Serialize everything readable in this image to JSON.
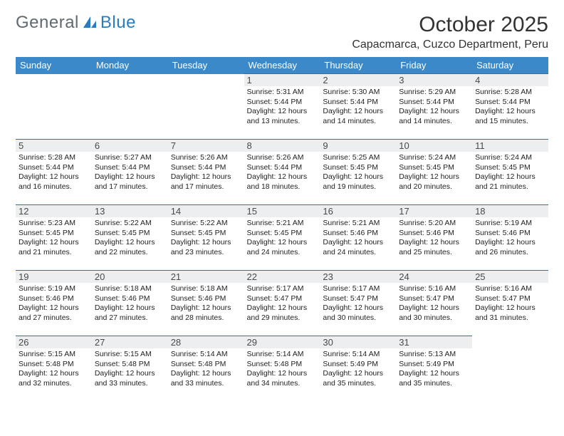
{
  "brand": {
    "part1": "General",
    "part2": "Blue"
  },
  "title": "October 2025",
  "location": "Capacmarca, Cuzco Department, Peru",
  "colors": {
    "header_bg": "#3b89c9",
    "header_text": "#ffffff",
    "row_border": "#2f6fa8",
    "daynum_bg": "#eceeef",
    "logo_gray": "#5f6a72",
    "logo_blue": "#2a7bbf"
  },
  "day_headers": [
    "Sunday",
    "Monday",
    "Tuesday",
    "Wednesday",
    "Thursday",
    "Friday",
    "Saturday"
  ],
  "weeks": [
    [
      null,
      null,
      null,
      {
        "n": "1",
        "sr": "Sunrise: 5:31 AM",
        "ss": "Sunset: 5:44 PM",
        "d1": "Daylight: 12 hours",
        "d2": "and 13 minutes."
      },
      {
        "n": "2",
        "sr": "Sunrise: 5:30 AM",
        "ss": "Sunset: 5:44 PM",
        "d1": "Daylight: 12 hours",
        "d2": "and 14 minutes."
      },
      {
        "n": "3",
        "sr": "Sunrise: 5:29 AM",
        "ss": "Sunset: 5:44 PM",
        "d1": "Daylight: 12 hours",
        "d2": "and 14 minutes."
      },
      {
        "n": "4",
        "sr": "Sunrise: 5:28 AM",
        "ss": "Sunset: 5:44 PM",
        "d1": "Daylight: 12 hours",
        "d2": "and 15 minutes."
      }
    ],
    [
      {
        "n": "5",
        "sr": "Sunrise: 5:28 AM",
        "ss": "Sunset: 5:44 PM",
        "d1": "Daylight: 12 hours",
        "d2": "and 16 minutes."
      },
      {
        "n": "6",
        "sr": "Sunrise: 5:27 AM",
        "ss": "Sunset: 5:44 PM",
        "d1": "Daylight: 12 hours",
        "d2": "and 17 minutes."
      },
      {
        "n": "7",
        "sr": "Sunrise: 5:26 AM",
        "ss": "Sunset: 5:44 PM",
        "d1": "Daylight: 12 hours",
        "d2": "and 17 minutes."
      },
      {
        "n": "8",
        "sr": "Sunrise: 5:26 AM",
        "ss": "Sunset: 5:44 PM",
        "d1": "Daylight: 12 hours",
        "d2": "and 18 minutes."
      },
      {
        "n": "9",
        "sr": "Sunrise: 5:25 AM",
        "ss": "Sunset: 5:45 PM",
        "d1": "Daylight: 12 hours",
        "d2": "and 19 minutes."
      },
      {
        "n": "10",
        "sr": "Sunrise: 5:24 AM",
        "ss": "Sunset: 5:45 PM",
        "d1": "Daylight: 12 hours",
        "d2": "and 20 minutes."
      },
      {
        "n": "11",
        "sr": "Sunrise: 5:24 AM",
        "ss": "Sunset: 5:45 PM",
        "d1": "Daylight: 12 hours",
        "d2": "and 21 minutes."
      }
    ],
    [
      {
        "n": "12",
        "sr": "Sunrise: 5:23 AM",
        "ss": "Sunset: 5:45 PM",
        "d1": "Daylight: 12 hours",
        "d2": "and 21 minutes."
      },
      {
        "n": "13",
        "sr": "Sunrise: 5:22 AM",
        "ss": "Sunset: 5:45 PM",
        "d1": "Daylight: 12 hours",
        "d2": "and 22 minutes."
      },
      {
        "n": "14",
        "sr": "Sunrise: 5:22 AM",
        "ss": "Sunset: 5:45 PM",
        "d1": "Daylight: 12 hours",
        "d2": "and 23 minutes."
      },
      {
        "n": "15",
        "sr": "Sunrise: 5:21 AM",
        "ss": "Sunset: 5:45 PM",
        "d1": "Daylight: 12 hours",
        "d2": "and 24 minutes."
      },
      {
        "n": "16",
        "sr": "Sunrise: 5:21 AM",
        "ss": "Sunset: 5:46 PM",
        "d1": "Daylight: 12 hours",
        "d2": "and 24 minutes."
      },
      {
        "n": "17",
        "sr": "Sunrise: 5:20 AM",
        "ss": "Sunset: 5:46 PM",
        "d1": "Daylight: 12 hours",
        "d2": "and 25 minutes."
      },
      {
        "n": "18",
        "sr": "Sunrise: 5:19 AM",
        "ss": "Sunset: 5:46 PM",
        "d1": "Daylight: 12 hours",
        "d2": "and 26 minutes."
      }
    ],
    [
      {
        "n": "19",
        "sr": "Sunrise: 5:19 AM",
        "ss": "Sunset: 5:46 PM",
        "d1": "Daylight: 12 hours",
        "d2": "and 27 minutes."
      },
      {
        "n": "20",
        "sr": "Sunrise: 5:18 AM",
        "ss": "Sunset: 5:46 PM",
        "d1": "Daylight: 12 hours",
        "d2": "and 27 minutes."
      },
      {
        "n": "21",
        "sr": "Sunrise: 5:18 AM",
        "ss": "Sunset: 5:46 PM",
        "d1": "Daylight: 12 hours",
        "d2": "and 28 minutes."
      },
      {
        "n": "22",
        "sr": "Sunrise: 5:17 AM",
        "ss": "Sunset: 5:47 PM",
        "d1": "Daylight: 12 hours",
        "d2": "and 29 minutes."
      },
      {
        "n": "23",
        "sr": "Sunrise: 5:17 AM",
        "ss": "Sunset: 5:47 PM",
        "d1": "Daylight: 12 hours",
        "d2": "and 30 minutes."
      },
      {
        "n": "24",
        "sr": "Sunrise: 5:16 AM",
        "ss": "Sunset: 5:47 PM",
        "d1": "Daylight: 12 hours",
        "d2": "and 30 minutes."
      },
      {
        "n": "25",
        "sr": "Sunrise: 5:16 AM",
        "ss": "Sunset: 5:47 PM",
        "d1": "Daylight: 12 hours",
        "d2": "and 31 minutes."
      }
    ],
    [
      {
        "n": "26",
        "sr": "Sunrise: 5:15 AM",
        "ss": "Sunset: 5:48 PM",
        "d1": "Daylight: 12 hours",
        "d2": "and 32 minutes."
      },
      {
        "n": "27",
        "sr": "Sunrise: 5:15 AM",
        "ss": "Sunset: 5:48 PM",
        "d1": "Daylight: 12 hours",
        "d2": "and 33 minutes."
      },
      {
        "n": "28",
        "sr": "Sunrise: 5:14 AM",
        "ss": "Sunset: 5:48 PM",
        "d1": "Daylight: 12 hours",
        "d2": "and 33 minutes."
      },
      {
        "n": "29",
        "sr": "Sunrise: 5:14 AM",
        "ss": "Sunset: 5:48 PM",
        "d1": "Daylight: 12 hours",
        "d2": "and 34 minutes."
      },
      {
        "n": "30",
        "sr": "Sunrise: 5:14 AM",
        "ss": "Sunset: 5:49 PM",
        "d1": "Daylight: 12 hours",
        "d2": "and 35 minutes."
      },
      {
        "n": "31",
        "sr": "Sunrise: 5:13 AM",
        "ss": "Sunset: 5:49 PM",
        "d1": "Daylight: 12 hours",
        "d2": "and 35 minutes."
      },
      null
    ]
  ]
}
